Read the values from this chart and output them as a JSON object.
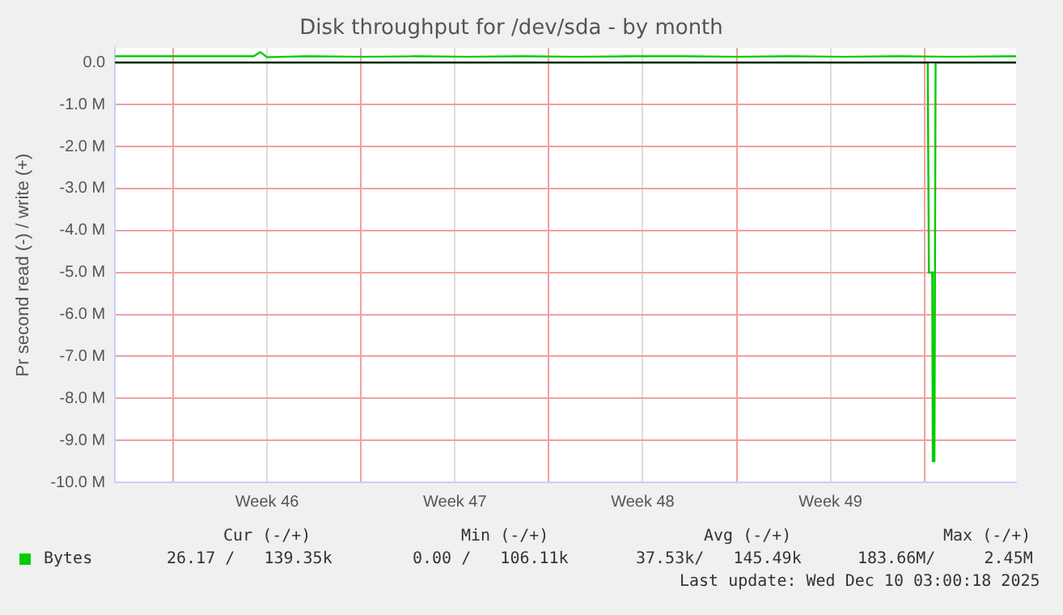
{
  "chart_data": {
    "type": "line",
    "title": "Disk throughput for /dev/sda - by month",
    "ylabel": "Pr second read (-) / write (+)",
    "xlim": [
      "2025-11-07T20:00",
      "2025-12-11T10:00"
    ],
    "xticks": [
      {
        "value": "2025-11-10T00:00",
        "label": null
      },
      {
        "value": "2025-11-13T12:00",
        "label": "Week 46"
      },
      {
        "value": "2025-11-17T00:00",
        "label": null
      },
      {
        "value": "2025-11-20T12:00",
        "label": "Week 47"
      },
      {
        "value": "2025-11-24T00:00",
        "label": null
      },
      {
        "value": "2025-11-27T12:00",
        "label": "Week 48"
      },
      {
        "value": "2025-12-01T00:00",
        "label": null
      },
      {
        "value": "2025-12-04T12:00",
        "label": "Week 49"
      },
      {
        "value": "2025-12-08T00:00",
        "label": null
      }
    ],
    "ylim": [
      -10000000,
      350000
    ],
    "yticks": [
      {
        "value": -10000000,
        "label": "-10.0 M"
      },
      {
        "value": -9000000,
        "label": "-9.0 M"
      },
      {
        "value": -8000000,
        "label": "-8.0 M"
      },
      {
        "value": -7000000,
        "label": "-7.0 M"
      },
      {
        "value": -6000000,
        "label": "-6.0 M"
      },
      {
        "value": -5000000,
        "label": "-5.0 M"
      },
      {
        "value": -4000000,
        "label": "-4.0 M"
      },
      {
        "value": -3000000,
        "label": "-3.0 M"
      },
      {
        "value": -2000000,
        "label": "-2.0 M"
      },
      {
        "value": -1000000,
        "label": "-1.0 M"
      },
      {
        "value": 0,
        "label": "0.0"
      }
    ],
    "grid": true,
    "legend": "bottom",
    "marker": "none",
    "line_style": "solid",
    "series": [
      {
        "name": "Bytes",
        "color": "#00cc00",
        "x": [
          "2025-11-07T20:00",
          "2025-11-09T00:00",
          "2025-11-11T00:00",
          "2025-11-13T00:00",
          "2025-11-13T06:00",
          "2025-11-13T12:00",
          "2025-11-15T00:00",
          "2025-11-17T00:00",
          "2025-11-19T00:00",
          "2025-11-21T00:00",
          "2025-11-23T00:00",
          "2025-11-25T00:00",
          "2025-11-27T00:00",
          "2025-11-29T00:00",
          "2025-12-01T00:00",
          "2025-12-03T00:00",
          "2025-12-05T00:00",
          "2025-12-07T00:00",
          "2025-12-09T00:00",
          "2025-12-11T10:00"
        ],
        "values": [
          150000,
          150000,
          150000,
          150000,
          250000,
          130000,
          150000,
          140000,
          150000,
          140000,
          150000,
          140000,
          150000,
          150000,
          140000,
          150000,
          140000,
          150000,
          140000,
          150000
        ]
      },
      {
        "color": "#00cc00",
        "x": [
          "2025-11-07T20:00",
          "2025-12-08T03:00",
          "2025-12-08T04:00",
          "2025-12-08T07:00",
          "2025-12-08T07:30",
          "2025-12-08T09:00",
          "2025-12-08T10:00",
          "2025-12-11T10:00"
        ],
        "values": [
          0,
          0,
          -5000000,
          -5000000,
          -9500000,
          -9500000,
          0,
          0
        ]
      }
    ],
    "annotations": [
      "Cur (-/+)",
      "Min (-/+)",
      "Avg (-/+)",
      "Max (-/+)",
      "26.17 /   139.35k",
      "0.00 /   106.11k",
      "37.53k/   145.49k",
      "183.66M/     2.45M",
      "Last update: Wed Dec 10 03:00:18 2025"
    ]
  }
}
